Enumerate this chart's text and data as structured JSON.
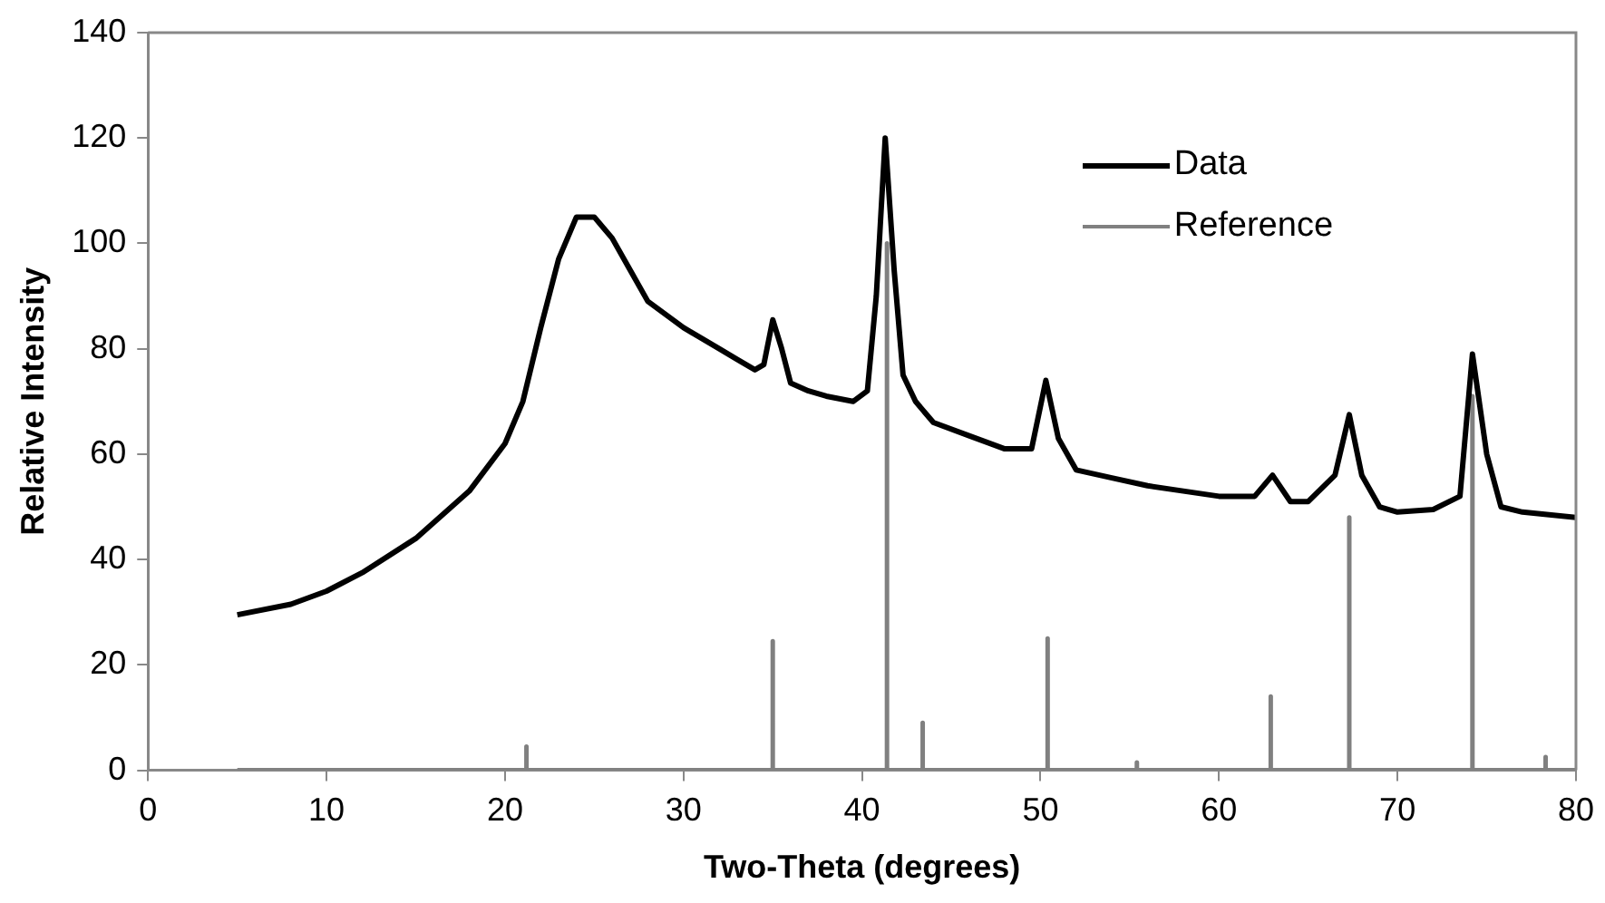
{
  "chart_data": {
    "type": "line",
    "xlabel": "Two-Theta (degrees)",
    "ylabel": "Relative Intensity",
    "xlim": [
      0,
      80
    ],
    "xticks": [
      0,
      10,
      20,
      30,
      40,
      50,
      60,
      70,
      80
    ],
    "ylim": [
      0,
      140
    ],
    "yticks": [
      0,
      20,
      40,
      60,
      80,
      100,
      120,
      140
    ],
    "grid": false,
    "legend": "top right",
    "marker": "none",
    "series": [
      {
        "name": "Data",
        "color": "#000000",
        "x": [
          5,
          8,
          10,
          12,
          15,
          18,
          20,
          21,
          22,
          23,
          24,
          25,
          26,
          27,
          28,
          30,
          32,
          33,
          34,
          34.5,
          35,
          35.5,
          36,
          37,
          38,
          39.5,
          40.3,
          40.8,
          41.3,
          41.8,
          42.3,
          43,
          44,
          46,
          48,
          49.5,
          50.3,
          51,
          52,
          54,
          56,
          58,
          60,
          62,
          63,
          64,
          65,
          66.5,
          67.3,
          68,
          69,
          70,
          72,
          73.5,
          74.2,
          75,
          75.8,
          77,
          80
        ],
        "values": [
          29.5,
          31.5,
          34,
          37.5,
          44,
          53,
          62,
          70,
          84,
          97,
          105,
          105,
          101,
          95,
          89,
          84,
          80,
          78,
          76,
          77,
          85.5,
          80,
          73.5,
          72,
          71,
          70,
          72,
          90,
          120,
          95,
          75,
          70,
          66,
          63.5,
          61,
          61,
          74,
          63,
          57,
          55.5,
          54,
          53,
          52,
          52,
          56,
          51,
          51,
          56,
          67.5,
          56,
          50,
          49,
          49.5,
          52,
          79,
          60,
          50,
          49,
          48
        ]
      },
      {
        "name": "Reference",
        "color": "#808080",
        "x": [
          5,
          21.2,
          21.2,
          21.2,
          35,
          35,
          35,
          41.4,
          41.4,
          41.4,
          43.4,
          43.4,
          43.4,
          50.4,
          50.4,
          50.4,
          55.4,
          55.4,
          55.4,
          62.9,
          62.9,
          62.9,
          67.3,
          67.3,
          67.3,
          74.2,
          74.2,
          74.2,
          78.3,
          78.3,
          78.3,
          80
        ],
        "values": [
          0,
          0,
          4.5,
          0,
          0,
          24.5,
          0,
          0,
          100,
          0,
          0,
          9,
          0,
          0,
          25,
          0,
          0,
          1.5,
          0,
          0,
          14,
          0,
          0,
          48,
          0,
          0,
          71,
          0,
          0,
          2.5,
          0,
          0
        ]
      }
    ]
  }
}
